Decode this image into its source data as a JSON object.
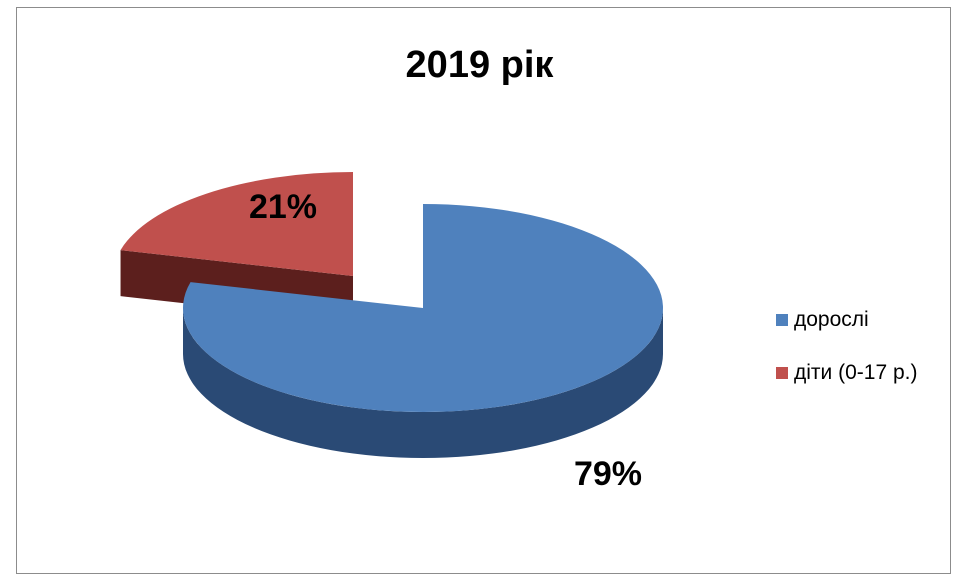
{
  "chart_data": {
    "type": "pie",
    "title": "2019 рік",
    "slices": [
      {
        "name": "дорослі",
        "value": 79,
        "label": "79%",
        "color": "#4f81bd",
        "side_color": "#2a4a75"
      },
      {
        "name": "діти (0-17 р.)",
        "value": 21,
        "label": "21%",
        "color": "#c0504d",
        "side_color": "#5c1f1d"
      }
    ],
    "exploded_slice": "діти (0-17 р.)",
    "style": "3d",
    "legend_position": "right"
  }
}
